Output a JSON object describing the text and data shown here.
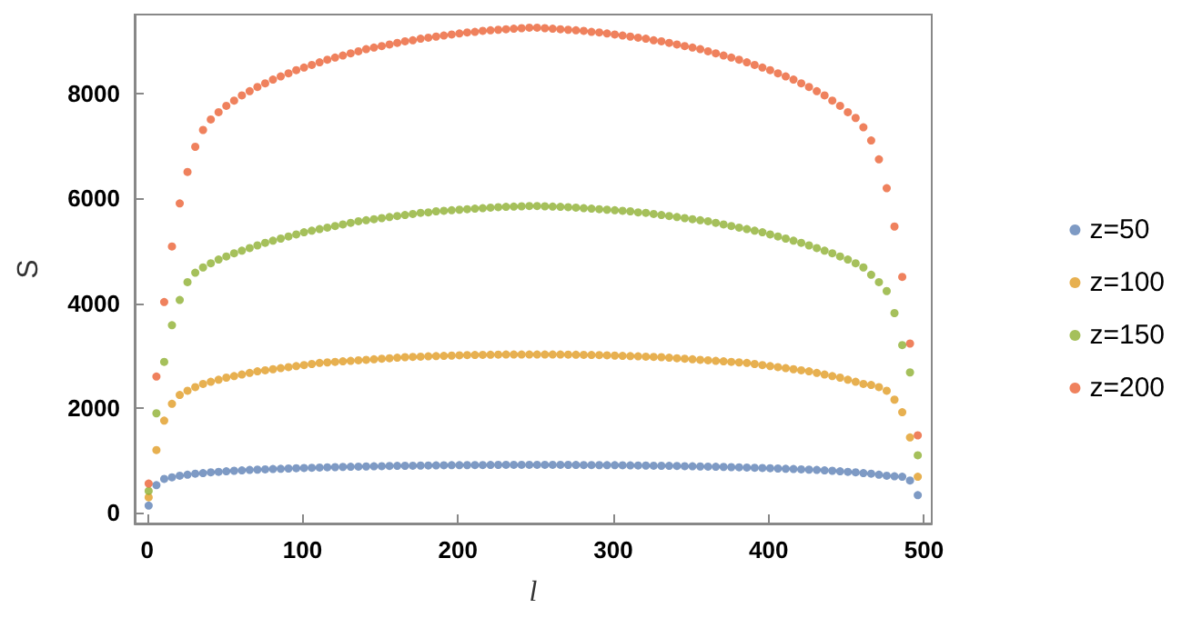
{
  "chart_data": {
    "type": "scatter",
    "xlabel": "l",
    "ylabel": "S",
    "legend": "right",
    "marker": "circle",
    "grid": false,
    "xlim": [
      -8,
      505
    ],
    "xticks": [
      0,
      100,
      200,
      300,
      400,
      500
    ],
    "ylim": [
      -200,
      9500
    ],
    "yticks": [
      0,
      2000,
      4000,
      6000,
      8000
    ],
    "x": [
      1,
      6,
      11,
      16,
      21,
      26,
      31,
      36,
      41,
      46,
      51,
      56,
      61,
      66,
      71,
      76,
      81,
      86,
      91,
      96,
      101,
      106,
      111,
      116,
      121,
      126,
      131,
      136,
      141,
      146,
      151,
      156,
      161,
      166,
      171,
      176,
      181,
      186,
      191,
      196,
      201,
      206,
      211,
      216,
      221,
      226,
      231,
      236,
      241,
      246,
      251,
      256,
      261,
      266,
      271,
      276,
      281,
      286,
      291,
      296,
      301,
      306,
      311,
      316,
      321,
      326,
      331,
      336,
      341,
      346,
      351,
      356,
      361,
      366,
      371,
      376,
      381,
      386,
      391,
      396,
      401,
      406,
      411,
      416,
      421,
      426,
      431,
      436,
      441,
      446,
      451,
      456,
      461,
      466,
      471,
      476,
      481,
      486,
      491,
      496
    ],
    "series": [
      {
        "name": "z=50",
        "color": "#5e81b5",
        "values": [
          140,
          530,
          650,
          680,
          710,
          730,
          750,
          760,
          775,
          785,
          795,
          805,
          812,
          820,
          826,
          832,
          838,
          843,
          848,
          853,
          858,
          862,
          866,
          870,
          874,
          878,
          881,
          884,
          887,
          890,
          893,
          896,
          898,
          900,
          902,
          904,
          906,
          908,
          910,
          911,
          912,
          913,
          914,
          915,
          916,
          917,
          918,
          918,
          919,
          919,
          919,
          919,
          918,
          918,
          917,
          916,
          915,
          914,
          913,
          912,
          911,
          910,
          908,
          906,
          904,
          902,
          900,
          898,
          896,
          893,
          890,
          887,
          884,
          881,
          878,
          874,
          870,
          866,
          862,
          858,
          853,
          848,
          843,
          838,
          832,
          826,
          820,
          812,
          805,
          795,
          785,
          775,
          760,
          750,
          730,
          710,
          700,
          690,
          620,
          340
        ]
      },
      {
        "name": "z=100",
        "color": "#e19c24",
        "values": [
          300,
          1200,
          1760,
          2080,
          2250,
          2330,
          2400,
          2460,
          2500,
          2540,
          2580,
          2610,
          2640,
          2670,
          2700,
          2720,
          2740,
          2760,
          2780,
          2800,
          2820,
          2840,
          2860,
          2870,
          2880,
          2890,
          2900,
          2910,
          2920,
          2930,
          2940,
          2950,
          2960,
          2970,
          2975,
          2980,
          2985,
          2990,
          2995,
          3000,
          3005,
          3010,
          3012,
          3014,
          3016,
          3018,
          3020,
          3020,
          3020,
          3020,
          3020,
          3020,
          3020,
          3020,
          3018,
          3016,
          3014,
          3012,
          3010,
          3005,
          3000,
          2995,
          2990,
          2985,
          2980,
          2975,
          2970,
          2960,
          2950,
          2940,
          2930,
          2920,
          2910,
          2900,
          2890,
          2880,
          2870,
          2860,
          2840,
          2820,
          2800,
          2780,
          2760,
          2740,
          2720,
          2700,
          2670,
          2640,
          2610,
          2580,
          2540,
          2500,
          2460,
          2440,
          2400,
          2330,
          2160,
          1920,
          1440,
          690
        ]
      },
      {
        "name": "z=150",
        "color": "#8fb032",
        "values": [
          420,
          1900,
          2880,
          3580,
          4060,
          4400,
          4580,
          4680,
          4760,
          4830,
          4890,
          4950,
          5000,
          5050,
          5100,
          5150,
          5190,
          5230,
          5270,
          5310,
          5350,
          5380,
          5410,
          5440,
          5470,
          5500,
          5530,
          5560,
          5580,
          5600,
          5620,
          5640,
          5660,
          5680,
          5700,
          5720,
          5730,
          5750,
          5760,
          5770,
          5780,
          5790,
          5800,
          5810,
          5820,
          5830,
          5835,
          5840,
          5845,
          5850,
          5850,
          5845,
          5840,
          5835,
          5830,
          5820,
          5810,
          5800,
          5790,
          5780,
          5770,
          5760,
          5750,
          5730,
          5720,
          5700,
          5680,
          5660,
          5640,
          5620,
          5600,
          5580,
          5560,
          5530,
          5500,
          5470,
          5440,
          5410,
          5380,
          5350,
          5310,
          5270,
          5230,
          5190,
          5150,
          5100,
          5050,
          5000,
          4950,
          4890,
          4830,
          4760,
          4680,
          4540,
          4400,
          4230,
          3810,
          3200,
          2680,
          1100
        ]
      },
      {
        "name": "z=200",
        "color": "#eb6235",
        "values": [
          560,
          2600,
          4020,
          5080,
          5900,
          6500,
          6980,
          7300,
          7500,
          7640,
          7760,
          7860,
          7960,
          8040,
          8120,
          8190,
          8260,
          8320,
          8380,
          8440,
          8490,
          8540,
          8590,
          8640,
          8680,
          8720,
          8760,
          8800,
          8840,
          8870,
          8900,
          8930,
          8960,
          8990,
          9010,
          9040,
          9060,
          9080,
          9100,
          9120,
          9140,
          9160,
          9170,
          9190,
          9200,
          9210,
          9220,
          9230,
          9240,
          9250,
          9250,
          9240,
          9230,
          9220,
          9210,
          9200,
          9190,
          9170,
          9160,
          9140,
          9120,
          9100,
          9080,
          9060,
          9040,
          9010,
          8990,
          8960,
          8930,
          8900,
          8870,
          8840,
          8800,
          8760,
          8720,
          8680,
          8640,
          8590,
          8540,
          8490,
          8440,
          8380,
          8320,
          8260,
          8190,
          8120,
          8040,
          7960,
          7860,
          7760,
          7640,
          7530,
          7350,
          7100,
          6740,
          6190,
          5460,
          4500,
          3230,
          1480
        ]
      }
    ]
  }
}
